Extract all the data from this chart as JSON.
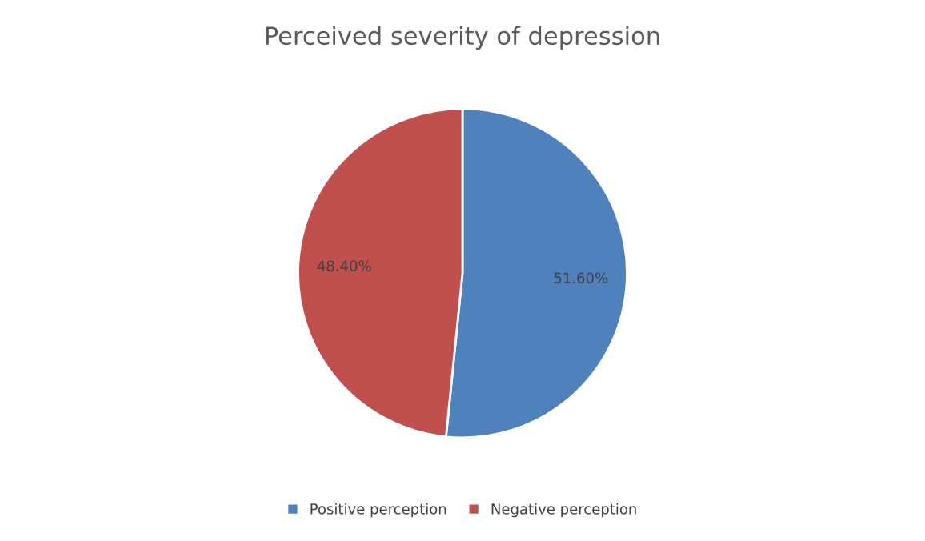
{
  "chart_data": {
    "type": "pie",
    "title": "Perceived severity of depression",
    "categories": [
      "Positive perception",
      "Negative perception"
    ],
    "values": [
      51.6,
      48.4
    ],
    "colors": [
      "#4f81bd",
      "#c0504d"
    ],
    "value_labels": [
      "51.60%",
      "48.40%"
    ],
    "legend": "bottom"
  }
}
